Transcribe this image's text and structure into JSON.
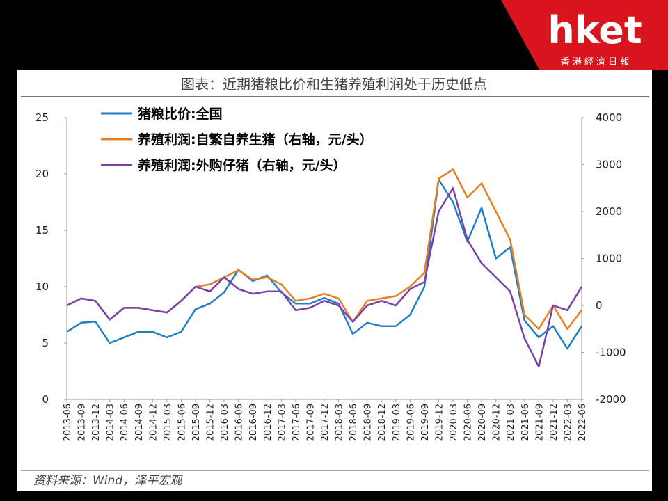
{
  "logo": {
    "brand": "hket",
    "tagline": "香 港 經 濟 日 報"
  },
  "chart_data": {
    "type": "line",
    "title": "图表：近期猪粮比价和生猪养殖利润处于历史低点",
    "source": "资料来源：Wind，泽平宏观",
    "categories": [
      "2013-06",
      "2013-09",
      "2013-12",
      "2014-03",
      "2014-06",
      "2014-09",
      "2014-12",
      "2015-03",
      "2015-06",
      "2015-09",
      "2015-12",
      "2016-03",
      "2016-06",
      "2016-09",
      "2016-12",
      "2017-03",
      "2017-06",
      "2017-09",
      "2017-12",
      "2018-03",
      "2018-06",
      "2018-09",
      "2018-12",
      "2019-03",
      "2019-06",
      "2019-09",
      "2019-12",
      "2020-03",
      "2020-06",
      "2020-09",
      "2020-12",
      "2021-03",
      "2021-06",
      "2021-09",
      "2021-12",
      "2022-03",
      "2022-06"
    ],
    "ylim": [
      0,
      25
    ],
    "yticks": [
      0,
      5,
      10,
      15,
      20,
      25
    ],
    "y2lim": [
      -2000,
      4000
    ],
    "y2ticks": [
      -2000,
      -1000,
      0,
      1000,
      2000,
      3000,
      4000
    ],
    "series": [
      {
        "name": "猪粮比价:全国",
        "color": "#1f7fc4",
        "axis": "y",
        "values": [
          6.0,
          6.8,
          6.9,
          5.0,
          5.5,
          6.0,
          6.0,
          5.5,
          6.0,
          8.0,
          8.5,
          9.5,
          11.5,
          10.5,
          11.0,
          9.5,
          8.5,
          8.5,
          9.0,
          8.5,
          5.8,
          6.8,
          6.5,
          6.5,
          7.5,
          10.0,
          19.5,
          17.5,
          14.0,
          17.0,
          12.5,
          13.5,
          7.0,
          5.5,
          6.5,
          4.5,
          6.5
        ]
      },
      {
        "name": "养殖利润:自繁自养生猪（右轴，元/头）",
        "color": "#e87e22",
        "axis": "y2",
        "values": [
          0,
          150,
          100,
          -300,
          -50,
          -50,
          -100,
          -150,
          100,
          400,
          450,
          600,
          750,
          550,
          600,
          450,
          100,
          150,
          250,
          150,
          -350,
          100,
          150,
          200,
          400,
          700,
          2700,
          2900,
          2300,
          2600,
          2000,
          1400,
          -200,
          -500,
          0,
          -500,
          -100
        ]
      },
      {
        "name": "养殖利润:外购仔猪（右轴，元/头）",
        "color": "#7b3fa8",
        "axis": "y2",
        "values": [
          0,
          150,
          100,
          -300,
          -50,
          -50,
          -100,
          -150,
          100,
          400,
          300,
          600,
          350,
          250,
          300,
          300,
          -100,
          -50,
          100,
          0,
          -350,
          0,
          100,
          0,
          350,
          500,
          2000,
          2500,
          1400,
          900,
          600,
          300,
          -700,
          -1300,
          0,
          -100,
          400
        ]
      }
    ]
  }
}
